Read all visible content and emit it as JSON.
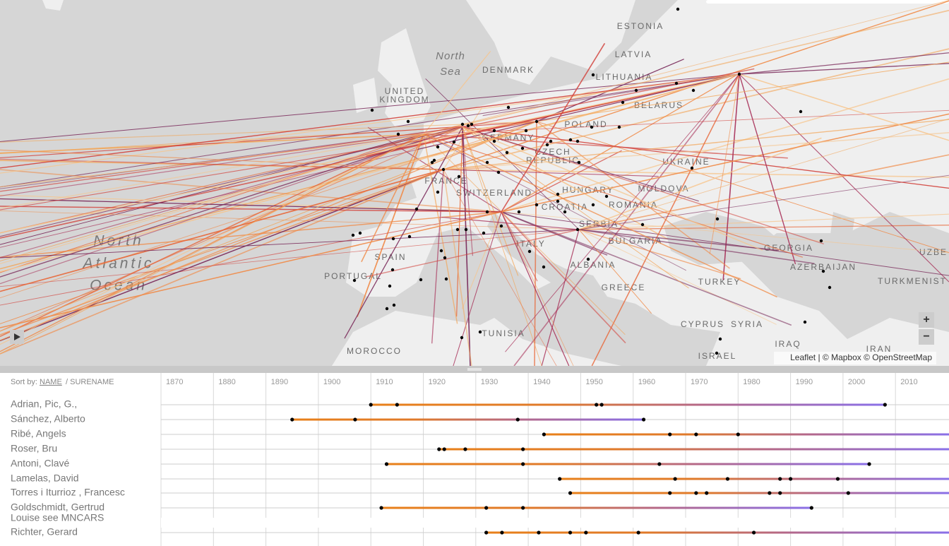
{
  "map": {
    "labels": [
      "ESTONIA",
      "LATVIA",
      "LITHUANIA",
      "DENMARK",
      "UNITED",
      "KINGDOM",
      "BELARUS",
      "POLAND",
      "GERMANY",
      "CZECH",
      "REPUBLIC",
      "UKRAINE",
      "FRANCE",
      "SWITZERLAND",
      "HUNGARY",
      "MOLDOVA",
      "ROMANIA",
      "CROATIA",
      "SERBIA",
      "BULGARIA",
      "ITALY",
      "SPAIN",
      "PORTUGAL",
      "ALBANIA",
      "GREECE",
      "GEORGIA",
      "AZERBAIJAN",
      "TURKEY",
      "TURKMENIST",
      "UZBE",
      "CYPRUS",
      "SYRIA",
      "IRAQ",
      "IRAN",
      "ISRAEL",
      "TUNISIA",
      "MOROCCO"
    ],
    "water_labels": [
      "North",
      "Atlantic",
      "Ocean",
      "North",
      "Sea"
    ],
    "zoom_in": "+",
    "zoom_out": "−",
    "attribution": "Leaflet | © Mapbox © OpenStreetMap"
  },
  "timeline": {
    "sort_label": "Sort by:",
    "sort_name": "NAME",
    "sort_surname": "/ SURENAME",
    "years": [
      1870,
      1880,
      1890,
      1900,
      1910,
      1920,
      1930,
      1940,
      1950,
      1960,
      1970,
      1980,
      1990,
      2000,
      2010
    ],
    "rows": [
      {
        "name": "Adrian, Pic, G.,",
        "events": [
          1910,
          1915,
          1953,
          1954,
          2008
        ],
        "ongoing": false
      },
      {
        "name": "Sánchez, Alberto",
        "events": [
          1895,
          1907,
          1938,
          1962
        ],
        "ongoing": false
      },
      {
        "name": "Ribé, Angels",
        "events": [
          1943,
          1967,
          1972,
          1980
        ],
        "ongoing": true
      },
      {
        "name": "Roser, Bru",
        "events": [
          1923,
          1924,
          1928,
          1939
        ],
        "ongoing": true
      },
      {
        "name": "Antoni, Clavé",
        "events": [
          1913,
          1939,
          1965,
          2005
        ],
        "ongoing": false
      },
      {
        "name": "Lamelas, David",
        "events": [
          1946,
          1968,
          1978,
          1988,
          1990,
          1999
        ],
        "ongoing": true
      },
      {
        "name": "Torres i Iturrioz , Francesc",
        "events": [
          1948,
          1967,
          1972,
          1974,
          1986,
          1988,
          2001
        ],
        "ongoing": true
      },
      {
        "name": [
          "Goldschmidt, Gertrud",
          "Louise see MNCARS"
        ],
        "events": [
          1912,
          1932,
          1939,
          1994
        ],
        "ongoing": false
      },
      {
        "name": "Richter, Gerard",
        "events": [
          1932,
          1935,
          1942,
          1948,
          1951,
          1961,
          1983
        ],
        "ongoing": true
      }
    ]
  }
}
